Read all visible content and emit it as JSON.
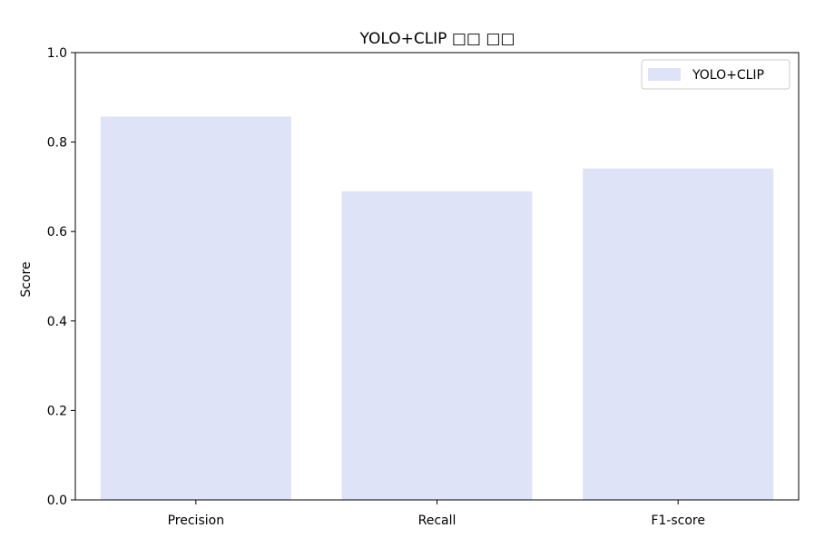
{
  "chart_data": {
    "type": "bar",
    "title": "YOLO+CLIP □□ □□",
    "xlabel": "",
    "ylabel": "Score",
    "ylim": [
      0,
      1.0
    ],
    "yticks": [
      "0.0",
      "0.2",
      "0.4",
      "0.6",
      "0.8",
      "1.0"
    ],
    "categories": [
      "Precision",
      "Recall",
      "F1-score"
    ],
    "series": [
      {
        "name": "YOLO+CLIP",
        "values": [
          0.857,
          0.69,
          0.741
        ],
        "color": "#dfe3f7"
      }
    ],
    "grid": false,
    "legend_position": "top-right"
  }
}
